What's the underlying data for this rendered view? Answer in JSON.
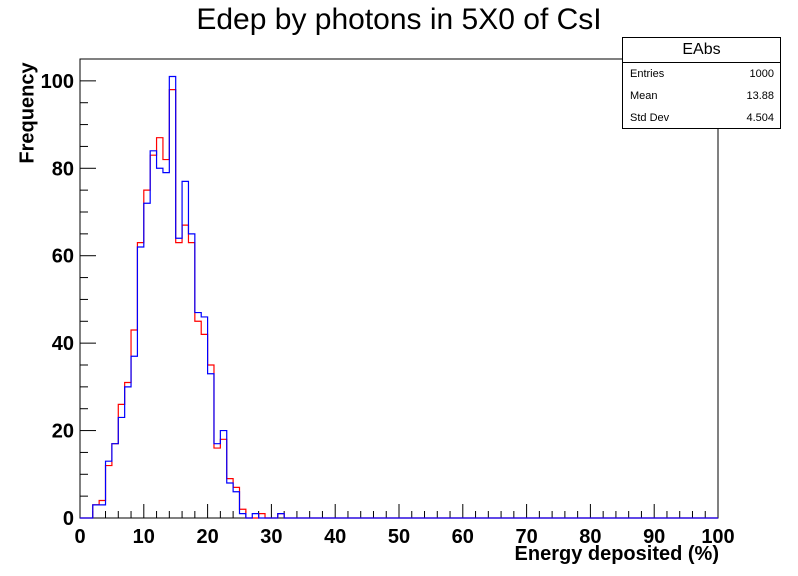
{
  "chart_data": {
    "type": "histogram",
    "title": "Edep by photons in 5X0 of CsI",
    "xlabel": "Energy deposited (%)",
    "ylabel": "Frequency",
    "xlim": [
      0,
      100
    ],
    "ylim": [
      0,
      105
    ],
    "x_ticks": [
      "0",
      "10",
      "20",
      "30",
      "40",
      "50",
      "60",
      "70",
      "80",
      "90",
      "100"
    ],
    "y_ticks": [
      "0",
      "20",
      "40",
      "60",
      "80",
      "100"
    ],
    "bin_width": 1,
    "bin_start": 0,
    "series": [
      {
        "color": "#ff0000",
        "values": [
          0,
          0,
          3,
          4,
          12,
          17,
          26,
          31,
          43,
          63,
          75,
          83,
          87,
          82,
          98,
          63,
          67,
          63,
          45,
          42,
          35,
          16,
          18,
          9,
          7,
          2,
          0,
          0,
          1,
          0,
          0,
          1,
          0
        ]
      },
      {
        "color": "#0000ff",
        "values": [
          0,
          0,
          3,
          3,
          13,
          17,
          23,
          30,
          37,
          62,
          72,
          84,
          80,
          79,
          101,
          64,
          77,
          65,
          47,
          46,
          33,
          17,
          20,
          8,
          6,
          1,
          0,
          1,
          0,
          0,
          0,
          1,
          0
        ]
      }
    ]
  },
  "stats_box": {
    "name": "EAbs",
    "rows": [
      {
        "label": "Entries",
        "value": "1000"
      },
      {
        "label": "Mean",
        "value": "13.88"
      },
      {
        "label": "Std Dev",
        "value": "4.504"
      }
    ]
  }
}
